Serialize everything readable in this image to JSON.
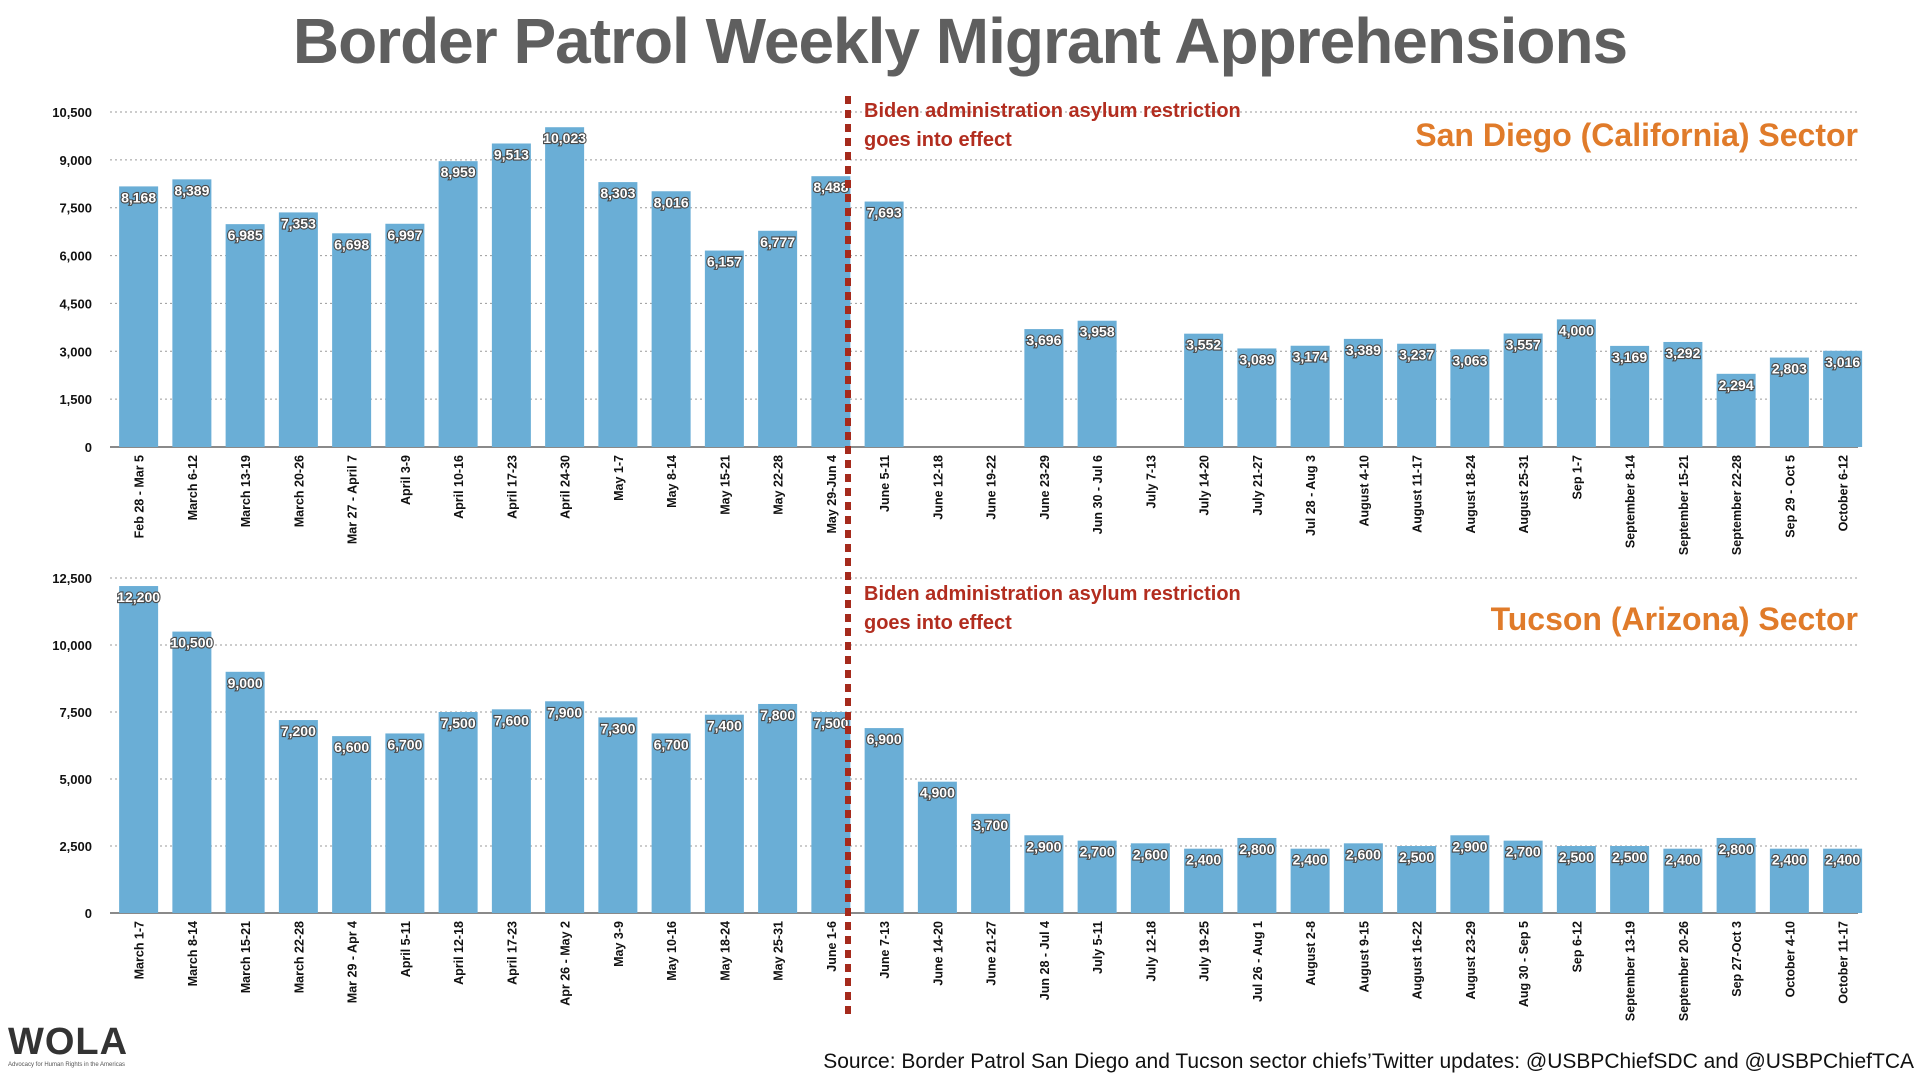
{
  "title": "Border Patrol Weekly Migrant Apprehensions",
  "source": "Source: Border Patrol San Diego and Tucson sector chiefs’Twitter updates: @USBPChiefSDC and @USBPChiefTCA",
  "logo": {
    "text": "WOLA",
    "tagline": "Advocacy for Human Rights in the Americas"
  },
  "colors": {
    "bar": "#6aaed6",
    "title": "#5f5f5f",
    "panel_title": "#e07b2a",
    "annotation": "#b22d1f",
    "divider": "#a52a1c"
  },
  "chart_data": [
    {
      "type": "bar",
      "title": "San Diego (California) Sector",
      "annotation": "Biden administration asylum restriction goes into effect",
      "ylim": [
        0,
        10500
      ],
      "yticks": [
        "0",
        "1,500",
        "3,000",
        "4,500",
        "6,000",
        "7,500",
        "9,000",
        "10,500"
      ],
      "ytick_values": [
        0,
        1500,
        3000,
        4500,
        6000,
        7500,
        9000,
        10500
      ],
      "grid": true,
      "divider_after_index": 13,
      "categories": [
        "Feb 28 - Mar 5",
        "March 6-12",
        "March 13-19",
        "March 20-26",
        "Mar 27 - April 7",
        "April 3-9",
        "April 10-16",
        "April 17-23",
        "April 24-30",
        "May 1-7",
        "May 8-14",
        "May 15-21",
        "May 22-28",
        "May 29-Jun 4",
        "June 5-11",
        "June 12-18",
        "June 19-22",
        "June 23-29",
        "Jun 30 - Jul 6",
        "July 7-13",
        "July 14-20",
        "July 21-27",
        "Jul 28 - Aug 3",
        "August 4-10",
        "August 11-17",
        "August 18-24",
        "August 25-31",
        "Sep 1-7",
        "September 8-14",
        "September 15-21",
        "September 22-28",
        "Sep 29 - Oct 5",
        "October 6-12"
      ],
      "values": [
        8168,
        8389,
        6985,
        7353,
        6698,
        6997,
        8959,
        9513,
        10023,
        8303,
        8016,
        6157,
        6777,
        8488,
        7693,
        null,
        null,
        3696,
        3958,
        null,
        3552,
        3089,
        3174,
        3389,
        3237,
        3063,
        3557,
        4000,
        3169,
        3292,
        2294,
        2803,
        3016
      ],
      "labels": [
        "8,168",
        "8,389",
        "6,985",
        "7,353",
        "6,698",
        "6,997",
        "8,959",
        "9,513",
        "10,023",
        "8,303",
        "8,016",
        "6,157",
        "6,777",
        "8,488",
        "7,693",
        "",
        "",
        "3,696",
        "3,958",
        "",
        "3,552",
        "3,089",
        "3,174",
        "3,389",
        "3,237",
        "3,063",
        "3,557",
        "4,000",
        "3,169",
        "3,292",
        "2,294",
        "2,803",
        "3,016"
      ]
    },
    {
      "type": "bar",
      "title": "Tucson (Arizona) Sector",
      "annotation": "Biden administration asylum restriction goes into effect",
      "ylim": [
        0,
        12500
      ],
      "yticks": [
        "0",
        "2,500",
        "5,000",
        "7,500",
        "10,000",
        "12,500"
      ],
      "ytick_values": [
        0,
        2500,
        5000,
        7500,
        10000,
        12500
      ],
      "grid": true,
      "divider_after_index": 13,
      "categories": [
        "March 1-7",
        "March 8-14",
        "March 15-21",
        "March 22-28",
        "Mar 29 - Apr 4",
        "April 5-11",
        "April 12-18",
        "April 17-23",
        "Apr 26 - May 2",
        "May 3-9",
        "May 10-16",
        "May 18-24",
        "May 25-31",
        "June 1-6",
        "June 7-13",
        "June 14-20",
        "June 21-27",
        "Jun 28 - Jul 4",
        "July 5-11",
        "July 12-18",
        "July 19-25",
        "Jul 26 - Aug 1",
        "August 2-8",
        "August 9-15",
        "August 16-22",
        "August 23-29",
        "Aug 30 - Sep 5",
        "Sep 6-12",
        "September 13-19",
        "September 20-26",
        "Sep 27-Oct 3",
        "October 4-10",
        "October 11-17"
      ],
      "values": [
        12200,
        10500,
        9000,
        7200,
        6600,
        6700,
        7500,
        7600,
        7900,
        7300,
        6700,
        7400,
        7800,
        7500,
        6900,
        4900,
        3700,
        2900,
        2700,
        2600,
        2400,
        2800,
        2400,
        2600,
        2500,
        2900,
        2700,
        2500,
        2500,
        2400,
        2800,
        2400,
        2400
      ],
      "labels": [
        "12,200",
        "10,500",
        "9,000",
        "7,200",
        "6,600",
        "6,700",
        "7,500",
        "7,600",
        "7,900",
        "7,300",
        "6,700",
        "7,400",
        "7,800",
        "7,500",
        "6,900",
        "4,900",
        "3,700",
        "2,900",
        "2,700",
        "2,600",
        "2,400",
        "2,800",
        "2,400",
        "2,600",
        "2,500",
        "2,900",
        "2,700",
        "2,500",
        "2,500",
        "2,400",
        "2,800",
        "2,400",
        "2,400"
      ]
    }
  ]
}
